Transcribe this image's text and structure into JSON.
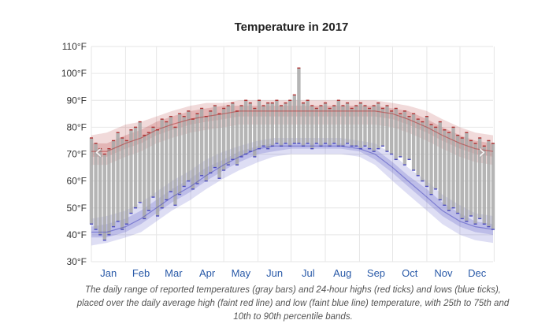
{
  "chart_data": {
    "type": "area",
    "title": "Temperature in 2017",
    "xlabel": "",
    "ylabel": "",
    "months": [
      "Jan",
      "Feb",
      "Mar",
      "Apr",
      "May",
      "Jun",
      "Jul",
      "Aug",
      "Sep",
      "Oct",
      "Nov",
      "Dec"
    ],
    "y_ticks": [
      "30°F",
      "40°F",
      "50°F",
      "60°F",
      "70°F",
      "80°F",
      "90°F",
      "100°F",
      "110°F"
    ],
    "ylim": [
      30,
      110
    ],
    "x_unit": "day of year",
    "xlim": [
      1,
      365
    ],
    "grid": true,
    "series": [
      {
        "role": "average-high",
        "color": "#b03030",
        "x": [
          1,
          15,
          32,
          46,
          60,
          74,
          91,
          105,
          121,
          135,
          152,
          166,
          182,
          196,
          213,
          227,
          244,
          258,
          274,
          288,
          305,
          319,
          335,
          349,
          365
        ],
        "mean": [
          71,
          71,
          74,
          76,
          79,
          81,
          83,
          84,
          85,
          86,
          86,
          86,
          86,
          86,
          86,
          86,
          86,
          86,
          85,
          83,
          80,
          77,
          74,
          72,
          71
        ],
        "p25": [
          69,
          69,
          72,
          74,
          77,
          79,
          81,
          82,
          83,
          84,
          84,
          84,
          84,
          84,
          84,
          84,
          84,
          84,
          83,
          81,
          78,
          75,
          72,
          70,
          69
        ],
        "p75": [
          74,
          74,
          77,
          79,
          82,
          84,
          86,
          87,
          88,
          88,
          88,
          88,
          88,
          88,
          88,
          88,
          88,
          88,
          87,
          86,
          83,
          80,
          77,
          75,
          74
        ],
        "p10": [
          66,
          66,
          69,
          71,
          74,
          76,
          78,
          79,
          80,
          81,
          81,
          81,
          81,
          81,
          81,
          81,
          81,
          81,
          80,
          78,
          75,
          72,
          69,
          67,
          66
        ],
        "p90": [
          77,
          78,
          81,
          82,
          84,
          86,
          88,
          89,
          89,
          90,
          90,
          90,
          90,
          90,
          90,
          90,
          90,
          90,
          89,
          88,
          86,
          83,
          80,
          78,
          77
        ]
      },
      {
        "role": "average-low",
        "color": "#4a4ac0",
        "x": [
          1,
          15,
          32,
          46,
          60,
          74,
          91,
          105,
          121,
          135,
          152,
          166,
          182,
          196,
          213,
          227,
          244,
          258,
          274,
          288,
          305,
          319,
          335,
          349,
          365
        ],
        "mean": [
          41,
          41,
          43,
          46,
          50,
          54,
          58,
          62,
          66,
          69,
          72,
          73,
          73,
          73,
          73,
          73,
          72,
          70,
          65,
          60,
          54,
          49,
          45,
          43,
          42
        ],
        "p25": [
          39,
          39,
          41,
          44,
          48,
          52,
          56,
          60,
          64,
          67,
          70,
          71,
          72,
          72,
          72,
          72,
          71,
          68,
          63,
          58,
          52,
          47,
          43,
          41,
          40
        ],
        "p75": [
          43,
          44,
          46,
          49,
          53,
          57,
          61,
          65,
          68,
          71,
          73,
          74,
          74,
          74,
          74,
          74,
          73,
          72,
          67,
          62,
          57,
          52,
          48,
          45,
          44
        ],
        "p10": [
          36,
          37,
          39,
          41,
          45,
          49,
          53,
          57,
          61,
          64,
          67,
          69,
          70,
          70,
          70,
          70,
          69,
          66,
          60,
          55,
          49,
          44,
          40,
          38,
          37
        ],
        "p90": [
          46,
          47,
          49,
          52,
          56,
          60,
          64,
          68,
          71,
          73,
          75,
          76,
          76,
          76,
          76,
          76,
          75,
          74,
          70,
          65,
          60,
          55,
          51,
          48,
          47
        ]
      },
      {
        "role": "daily-range",
        "color": "#a8a8a8",
        "x": [
          1,
          5,
          9,
          13,
          17,
          21,
          25,
          29,
          33,
          37,
          41,
          45,
          49,
          53,
          57,
          61,
          65,
          69,
          73,
          77,
          81,
          85,
          89,
          93,
          97,
          101,
          105,
          109,
          113,
          117,
          121,
          125,
          129,
          133,
          137,
          141,
          145,
          149,
          153,
          157,
          161,
          165,
          169,
          173,
          177,
          181,
          185,
          189,
          193,
          197,
          201,
          205,
          209,
          213,
          217,
          221,
          225,
          229,
          233,
          237,
          241,
          245,
          249,
          253,
          257,
          261,
          265,
          269,
          273,
          277,
          281,
          285,
          289,
          293,
          297,
          301,
          305,
          309,
          313,
          317,
          321,
          325,
          329,
          333,
          337,
          341,
          345,
          349,
          353,
          357,
          361,
          365
        ],
        "low": [
          44,
          42,
          40,
          38,
          40,
          43,
          45,
          42,
          44,
          48,
          50,
          52,
          46,
          49,
          54,
          47,
          50,
          53,
          56,
          51,
          55,
          58,
          60,
          57,
          59,
          62,
          60,
          63,
          65,
          61,
          64,
          66,
          68,
          66,
          69,
          70,
          71,
          69,
          72,
          73,
          72,
          73,
          74,
          73,
          74,
          73,
          74,
          74,
          73,
          74,
          72,
          74,
          73,
          74,
          73,
          74,
          73,
          73,
          74,
          73,
          73,
          72,
          73,
          72,
          71,
          72,
          73,
          71,
          70,
          68,
          69,
          66,
          68,
          64,
          62,
          60,
          58,
          55,
          57,
          53,
          51,
          49,
          50,
          48,
          46,
          45,
          47,
          44,
          46,
          44,
          43,
          42
        ],
        "high": [
          76,
          74,
          72,
          70,
          72,
          75,
          78,
          76,
          75,
          79,
          80,
          82,
          77,
          78,
          80,
          79,
          83,
          82,
          84,
          80,
          85,
          84,
          86,
          83,
          85,
          87,
          84,
          86,
          88,
          85,
          87,
          88,
          89,
          86,
          88,
          90,
          89,
          87,
          90,
          88,
          89,
          89,
          90,
          88,
          89,
          90,
          92,
          102,
          89,
          90,
          88,
          87,
          88,
          89,
          87,
          88,
          90,
          88,
          89,
          87,
          88,
          89,
          88,
          87,
          88,
          89,
          87,
          88,
          86,
          87,
          85,
          86,
          84,
          85,
          83,
          82,
          84,
          81,
          80,
          82,
          79,
          78,
          80,
          77,
          76,
          78,
          75,
          74,
          76,
          73,
          75,
          74
        ]
      }
    ]
  },
  "caption": "The daily range of reported temperatures (gray bars) and 24-hour highs (red ticks) and lows (blue ticks), placed over the daily average high (faint red line) and low (faint blue line) temperature, with 25th to 75th and 10th to 90th percentile bands.",
  "nav": {
    "prev_icon": "‹",
    "next_icon": "›"
  }
}
